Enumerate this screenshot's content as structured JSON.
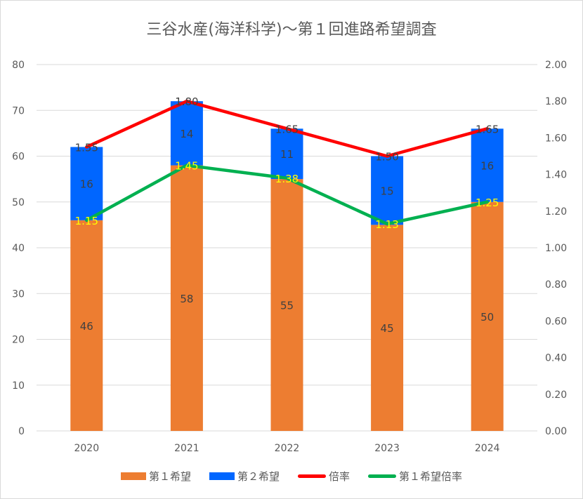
{
  "chart_data": {
    "type": "bar",
    "title": "三谷水産(海洋科学)～第１回進路希望調査",
    "categories": [
      "2020",
      "2021",
      "2022",
      "2023",
      "2024"
    ],
    "series": [
      {
        "name": "第１希望",
        "type": "stacked-bar",
        "axis": "left",
        "color": "#ED7D31",
        "label_color": "#404040",
        "values": [
          46,
          58,
          55,
          45,
          50
        ]
      },
      {
        "name": "第２希望",
        "type": "stacked-bar",
        "axis": "left",
        "color": "#0066FF",
        "label_color": "#404040",
        "values": [
          16,
          14,
          11,
          15,
          16
        ]
      },
      {
        "name": "倍率",
        "type": "line",
        "axis": "right",
        "color": "#FF0000",
        "label_color": "#404040",
        "values": [
          1.55,
          1.8,
          1.65,
          1.5,
          1.65
        ],
        "labels": [
          "1.55",
          "1.80",
          "1.65",
          "1.50",
          "1.65"
        ]
      },
      {
        "name": "第１希望倍率",
        "type": "line",
        "axis": "right",
        "color": "#00B050",
        "label_color": "#FFFF00",
        "values": [
          1.15,
          1.45,
          1.38,
          1.13,
          1.25
        ],
        "labels": [
          "1.15",
          "1.45",
          "1.38",
          "1.13",
          "1.25"
        ]
      }
    ],
    "ylim": [
      0,
      80
    ],
    "yticks": [
      "0",
      "10",
      "20",
      "30",
      "40",
      "50",
      "60",
      "70",
      "80"
    ],
    "y2lim": [
      0,
      2
    ],
    "y2ticks": [
      "0.00",
      "0.20",
      "0.40",
      "0.60",
      "0.80",
      "1.00",
      "1.20",
      "1.40",
      "1.60",
      "1.80",
      "2.00"
    ],
    "grid": true,
    "legend": "bottom"
  }
}
